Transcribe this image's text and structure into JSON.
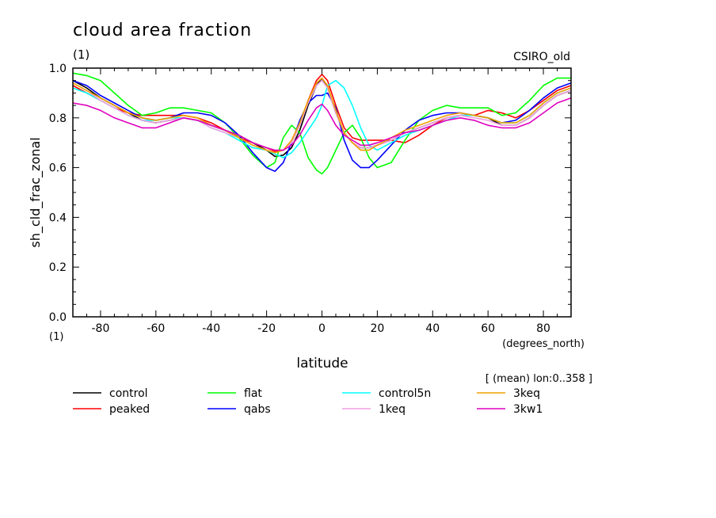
{
  "chart_data": {
    "type": "line",
    "title": "cloud area fraction",
    "units_label": "(1)",
    "model_label": "CSIRO_old",
    "ylabel": "sh_cld_frac_zonal",
    "y_units_label": "(1)",
    "xlabel": "latitude",
    "x_units_label": "(degrees_north)",
    "subtitle": "[ (mean) lon:0..358 ]",
    "xlim": [
      -90,
      90
    ],
    "ylim": [
      0.0,
      1.0
    ],
    "x_ticks": [
      -80,
      -60,
      -40,
      -20,
      0,
      20,
      40,
      60,
      80
    ],
    "y_ticks": [
      "0.0",
      "0.2",
      "0.4",
      "0.6",
      "0.8",
      "1.0"
    ],
    "grid": false,
    "legend_position": "bottom",
    "x": [
      -90,
      -85,
      -80,
      -75,
      -70,
      -65,
      -60,
      -55,
      -50,
      -45,
      -40,
      -35,
      -30,
      -25,
      -20,
      -17,
      -14,
      -11,
      -8,
      -5,
      -2,
      0,
      2,
      5,
      8,
      11,
      14,
      17,
      20,
      25,
      30,
      35,
      40,
      45,
      50,
      55,
      60,
      65,
      70,
      75,
      80,
      85,
      90
    ],
    "series": [
      {
        "name": "control",
        "color": "#000000",
        "values": [
          0.95,
          0.92,
          0.88,
          0.85,
          0.82,
          0.79,
          0.78,
          0.79,
          0.8,
          0.79,
          0.77,
          0.75,
          0.73,
          0.7,
          0.67,
          0.645,
          0.65,
          0.68,
          0.75,
          0.85,
          0.93,
          0.96,
          0.92,
          0.82,
          0.74,
          0.7,
          0.68,
          0.68,
          0.69,
          0.71,
          0.74,
          0.76,
          0.78,
          0.8,
          0.81,
          0.81,
          0.8,
          0.77,
          0.77,
          0.8,
          0.85,
          0.89,
          0.91
        ]
      },
      {
        "name": "peaked",
        "color": "#ff0000",
        "values": [
          0.93,
          0.9,
          0.87,
          0.84,
          0.82,
          0.81,
          0.81,
          0.81,
          0.81,
          0.8,
          0.78,
          0.75,
          0.72,
          0.7,
          0.68,
          0.665,
          0.67,
          0.7,
          0.77,
          0.87,
          0.95,
          0.975,
          0.95,
          0.85,
          0.76,
          0.72,
          0.71,
          0.71,
          0.71,
          0.71,
          0.7,
          0.73,
          0.77,
          0.8,
          0.81,
          0.81,
          0.83,
          0.82,
          0.8,
          0.83,
          0.87,
          0.91,
          0.93
        ]
      },
      {
        "name": "flat",
        "color": "#00ff00",
        "values": [
          0.98,
          0.97,
          0.95,
          0.9,
          0.85,
          0.81,
          0.82,
          0.84,
          0.84,
          0.83,
          0.82,
          0.78,
          0.72,
          0.65,
          0.6,
          0.62,
          0.72,
          0.77,
          0.74,
          0.64,
          0.59,
          0.575,
          0.6,
          0.67,
          0.74,
          0.77,
          0.72,
          0.64,
          0.6,
          0.62,
          0.71,
          0.79,
          0.83,
          0.85,
          0.84,
          0.84,
          0.84,
          0.81,
          0.82,
          0.87,
          0.93,
          0.96,
          0.96
        ]
      },
      {
        "name": "qabs",
        "color": "#0000ff",
        "values": [
          0.95,
          0.93,
          0.89,
          0.86,
          0.83,
          0.8,
          0.79,
          0.8,
          0.82,
          0.82,
          0.81,
          0.78,
          0.73,
          0.66,
          0.6,
          0.585,
          0.62,
          0.7,
          0.79,
          0.86,
          0.89,
          0.89,
          0.9,
          0.84,
          0.71,
          0.63,
          0.6,
          0.6,
          0.63,
          0.69,
          0.75,
          0.79,
          0.81,
          0.82,
          0.82,
          0.81,
          0.8,
          0.78,
          0.79,
          0.83,
          0.88,
          0.92,
          0.94
        ]
      },
      {
        "name": "control5n",
        "color": "#00ffff",
        "values": [
          0.92,
          0.9,
          0.87,
          0.84,
          0.81,
          0.79,
          0.79,
          0.8,
          0.8,
          0.79,
          0.76,
          0.74,
          0.71,
          0.68,
          0.67,
          0.655,
          0.64,
          0.66,
          0.7,
          0.75,
          0.8,
          0.85,
          0.93,
          0.95,
          0.92,
          0.85,
          0.76,
          0.69,
          0.67,
          0.7,
          0.73,
          0.75,
          0.77,
          0.79,
          0.81,
          0.81,
          0.8,
          0.78,
          0.78,
          0.81,
          0.86,
          0.9,
          0.92
        ]
      },
      {
        "name": "1keq",
        "color": "#f0a0e0",
        "values": [
          0.94,
          0.91,
          0.87,
          0.84,
          0.81,
          0.79,
          0.78,
          0.79,
          0.8,
          0.79,
          0.76,
          0.74,
          0.72,
          0.69,
          0.67,
          0.66,
          0.67,
          0.7,
          0.77,
          0.86,
          0.93,
          0.95,
          0.92,
          0.82,
          0.74,
          0.7,
          0.68,
          0.68,
          0.69,
          0.71,
          0.74,
          0.76,
          0.78,
          0.8,
          0.81,
          0.8,
          0.79,
          0.77,
          0.77,
          0.8,
          0.85,
          0.89,
          0.91
        ]
      },
      {
        "name": "3keq",
        "color": "#f0a000",
        "values": [
          0.94,
          0.91,
          0.88,
          0.85,
          0.82,
          0.8,
          0.79,
          0.8,
          0.81,
          0.8,
          0.77,
          0.75,
          0.72,
          0.69,
          0.67,
          0.66,
          0.67,
          0.71,
          0.78,
          0.87,
          0.94,
          0.96,
          0.93,
          0.83,
          0.74,
          0.7,
          0.67,
          0.67,
          0.69,
          0.72,
          0.75,
          0.77,
          0.79,
          0.81,
          0.82,
          0.81,
          0.8,
          0.78,
          0.78,
          0.81,
          0.86,
          0.9,
          0.92
        ]
      },
      {
        "name": "3kw1",
        "color": "#e000c0",
        "values": [
          0.86,
          0.85,
          0.83,
          0.8,
          0.78,
          0.76,
          0.76,
          0.78,
          0.8,
          0.79,
          0.77,
          0.75,
          0.73,
          0.7,
          0.68,
          0.67,
          0.67,
          0.69,
          0.73,
          0.79,
          0.84,
          0.855,
          0.83,
          0.77,
          0.73,
          0.71,
          0.69,
          0.69,
          0.7,
          0.72,
          0.74,
          0.75,
          0.77,
          0.79,
          0.8,
          0.79,
          0.77,
          0.76,
          0.76,
          0.78,
          0.82,
          0.86,
          0.88
        ]
      }
    ]
  }
}
